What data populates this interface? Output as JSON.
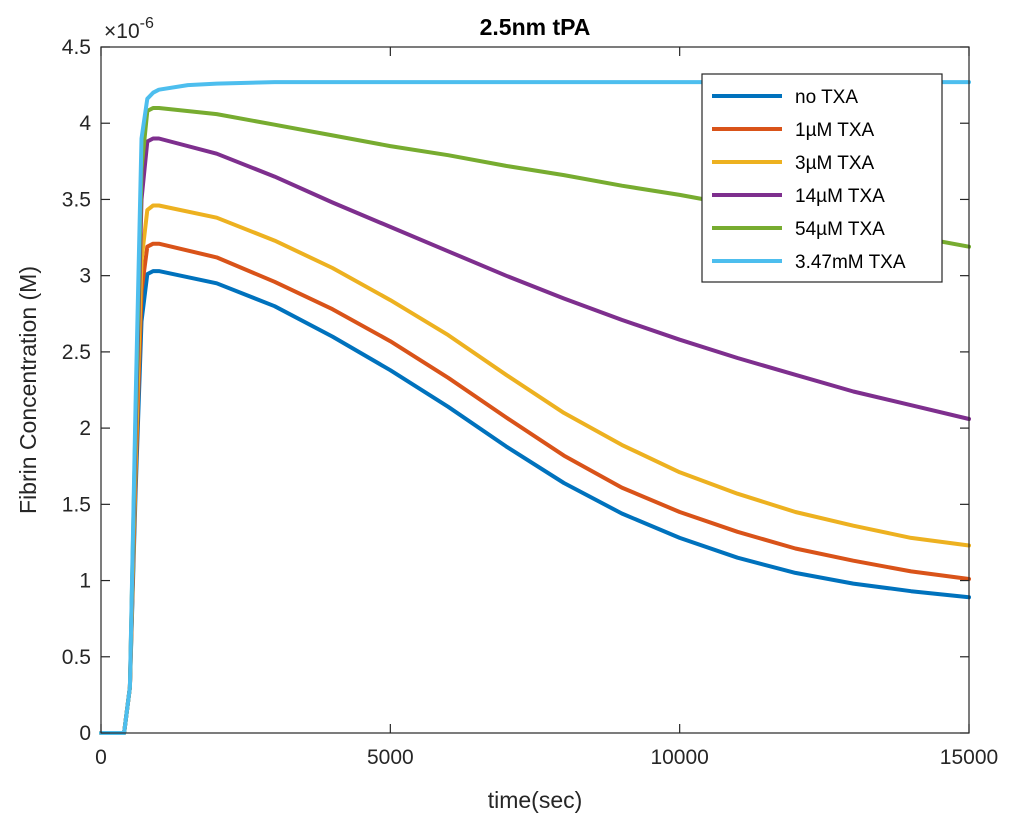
{
  "chart_data": {
    "type": "line",
    "title": "2.5nm tPA",
    "xlabel": "time(sec)",
    "ylabel": "Fibrin Concentration (M)",
    "xlim": [
      0,
      15000
    ],
    "ylim": [
      0,
      4.5
    ],
    "y_exponent_label": "×10",
    "y_exponent_power": "-6",
    "x_ticks": [
      "0",
      "5000",
      "10000",
      "15000"
    ],
    "y_ticks": [
      "0",
      "0.5",
      "1",
      "1.5",
      "2",
      "2.5",
      "3",
      "3.5",
      "4",
      "4.5"
    ],
    "legend_position": "top-right",
    "grid": false,
    "series": [
      {
        "name": "no TXA",
        "color": "#0072BD",
        "x": [
          0,
          400,
          500,
          600,
          700,
          800,
          900,
          1000,
          2000,
          3000,
          4000,
          5000,
          6000,
          7000,
          8000,
          9000,
          10000,
          11000,
          12000,
          13000,
          14000,
          15000
        ],
        "y": [
          0,
          0,
          0.3,
          1.6,
          2.7,
          3.01,
          3.03,
          3.03,
          2.95,
          2.8,
          2.6,
          2.38,
          2.14,
          1.88,
          1.64,
          1.44,
          1.28,
          1.15,
          1.05,
          0.98,
          0.93,
          0.89
        ]
      },
      {
        "name": "1µM TXA",
        "color": "#D95319",
        "x": [
          0,
          400,
          500,
          600,
          700,
          800,
          900,
          1000,
          2000,
          3000,
          4000,
          5000,
          6000,
          7000,
          8000,
          9000,
          10000,
          11000,
          12000,
          13000,
          14000,
          15000
        ],
        "y": [
          0,
          0,
          0.3,
          1.7,
          2.9,
          3.19,
          3.21,
          3.21,
          3.12,
          2.96,
          2.78,
          2.57,
          2.33,
          2.07,
          1.82,
          1.61,
          1.45,
          1.32,
          1.21,
          1.13,
          1.06,
          1.01
        ]
      },
      {
        "name": "3µM TXA",
        "color": "#EDB120",
        "x": [
          0,
          400,
          500,
          600,
          700,
          800,
          900,
          1000,
          2000,
          3000,
          4000,
          5000,
          6000,
          7000,
          8000,
          9000,
          10000,
          11000,
          12000,
          13000,
          14000,
          15000
        ],
        "y": [
          0,
          0,
          0.3,
          1.8,
          3.1,
          3.43,
          3.46,
          3.46,
          3.38,
          3.23,
          3.05,
          2.84,
          2.61,
          2.35,
          2.1,
          1.89,
          1.71,
          1.57,
          1.45,
          1.36,
          1.28,
          1.23
        ]
      },
      {
        "name": "14µM TXA",
        "color": "#7E2F8E",
        "x": [
          0,
          400,
          500,
          600,
          700,
          800,
          900,
          1000,
          2000,
          3000,
          4000,
          5000,
          6000,
          7000,
          8000,
          9000,
          10000,
          11000,
          12000,
          13000,
          14000,
          15000
        ],
        "y": [
          0,
          0,
          0.3,
          2.0,
          3.5,
          3.88,
          3.9,
          3.9,
          3.8,
          3.65,
          3.48,
          3.32,
          3.16,
          3.0,
          2.85,
          2.71,
          2.58,
          2.46,
          2.35,
          2.24,
          2.15,
          2.06
        ]
      },
      {
        "name": "54µM TXA",
        "color": "#77AC30",
        "x": [
          0,
          400,
          500,
          600,
          700,
          800,
          900,
          1000,
          2000,
          3000,
          4000,
          5000,
          6000,
          7000,
          8000,
          9000,
          10000,
          11000,
          12000,
          13000,
          14000,
          15000
        ],
        "y": [
          0,
          0,
          0.3,
          2.1,
          3.7,
          4.08,
          4.1,
          4.1,
          4.06,
          3.99,
          3.92,
          3.85,
          3.79,
          3.72,
          3.66,
          3.59,
          3.53,
          3.46,
          3.4,
          3.33,
          3.26,
          3.19
        ]
      },
      {
        "name": "3.47mM TXA",
        "color": "#4DBEEE",
        "x": [
          0,
          400,
          500,
          600,
          700,
          800,
          900,
          1000,
          1500,
          2000,
          3000,
          5000,
          10000,
          15000
        ],
        "y": [
          0,
          0,
          0.3,
          2.2,
          3.9,
          4.16,
          4.2,
          4.22,
          4.25,
          4.26,
          4.27,
          4.27,
          4.27,
          4.27
        ]
      }
    ]
  }
}
